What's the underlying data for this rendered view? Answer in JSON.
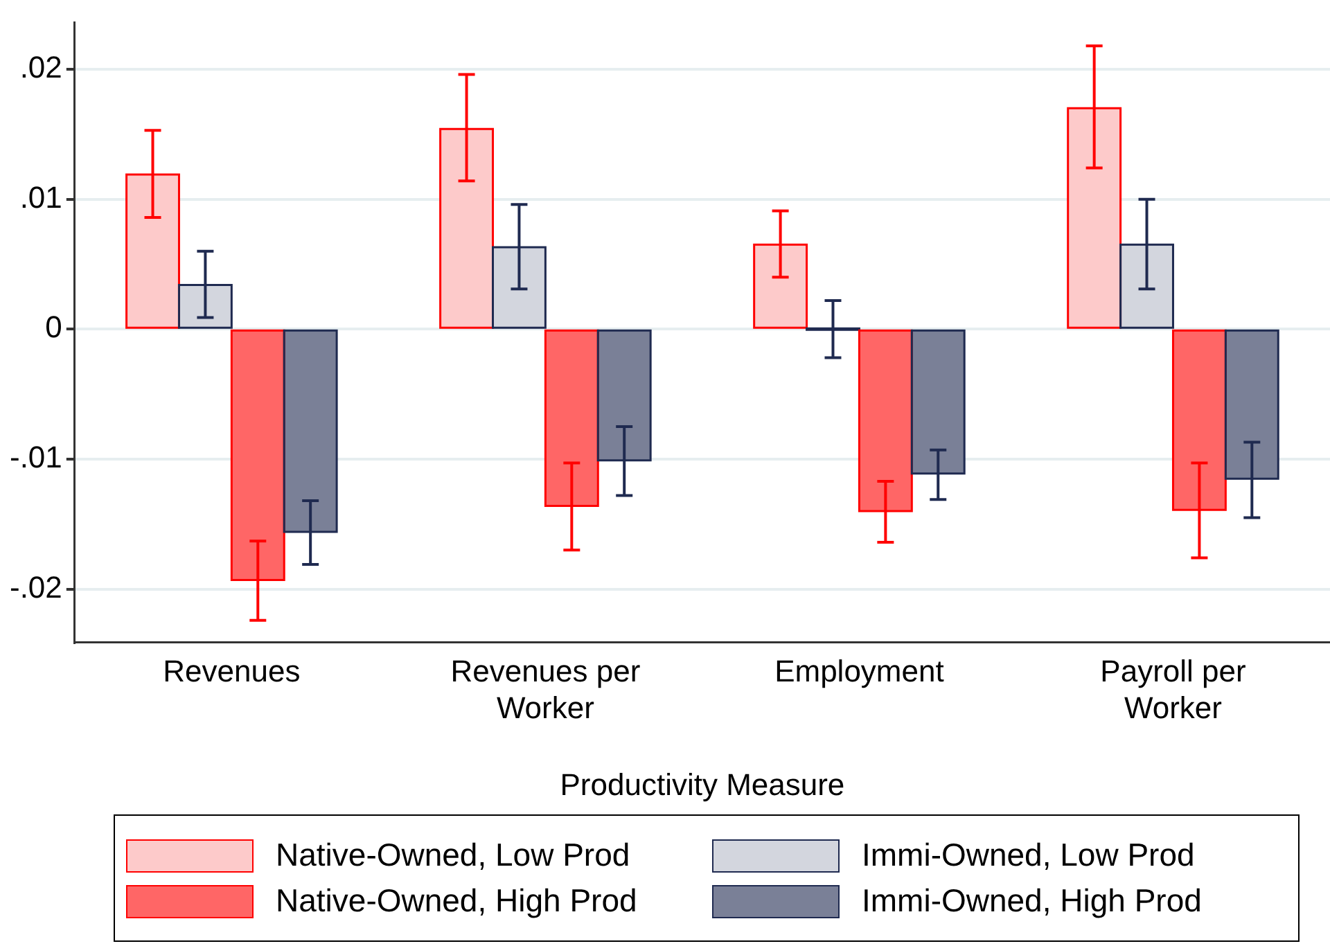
{
  "chart_data": {
    "type": "bar",
    "xlabel": "Productivity Measure",
    "categories": [
      "Revenues",
      "Revenues per Worker",
      "Employment",
      "Payroll per Worker"
    ],
    "ylim": [
      -0.0241,
      0.0236
    ],
    "yticks": [
      {
        "value": -0.02,
        "label": "-.02"
      },
      {
        "value": -0.01,
        "label": "-.01"
      },
      0,
      {
        "value": 0.01,
        "label": ".01"
      },
      {
        "value": 0.02,
        "label": ".02"
      }
    ],
    "grid": "y",
    "legend": "bottom",
    "series": [
      {
        "name": "Native-Owned, Low Prod",
        "color": "#fdcaca",
        "values": [
          0.0119,
          0.0154,
          0.0065,
          0.017
        ],
        "errors": [
          [
            0.0086,
            0.0153
          ],
          [
            0.0114,
            0.0196
          ],
          [
            0.004,
            0.0091
          ],
          [
            0.0124,
            0.0218
          ]
        ]
      },
      {
        "name": "Immi-Owned, Low Prod",
        "color": "#d3d6de",
        "values": [
          0.0034,
          0.0063,
          0.0,
          0.0065
        ],
        "errors": [
          [
            0.0009,
            0.006
          ],
          [
            0.0031,
            0.0096
          ],
          [
            -0.0022,
            0.0022
          ],
          [
            0.0031,
            0.01
          ]
        ]
      },
      {
        "name": "Native-Owned, High Prod",
        "color": "#ff6666",
        "values": [
          -0.0193,
          -0.0136,
          -0.014,
          -0.0139
        ],
        "errors": [
          [
            -0.0224,
            -0.0163
          ],
          [
            -0.017,
            -0.0103
          ],
          [
            -0.0164,
            -0.0117
          ],
          [
            -0.0176,
            -0.0103
          ]
        ]
      },
      {
        "name": "Immi-Owned, High Prod",
        "color": "#7a8097",
        "values": [
          -0.0156,
          -0.0101,
          -0.0111,
          -0.0115
        ],
        "errors": [
          [
            -0.0181,
            -0.0132
          ],
          [
            -0.0128,
            -0.0075
          ],
          [
            -0.0131,
            -0.0093
          ],
          [
            -0.0145,
            -0.0087
          ]
        ]
      }
    ]
  }
}
